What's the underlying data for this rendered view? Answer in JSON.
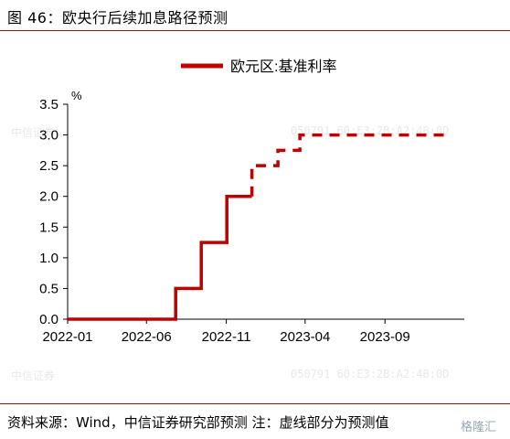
{
  "header": {
    "title": "图 46：欧央行后续加息路径预测"
  },
  "watermarks": {
    "left_text": "中信证券",
    "right_text": "050791  60:E3:2B:A2:4B:0D"
  },
  "footer": {
    "source_text": "资料来源：Wind，中信证券研究部预测  注：虚线部分为预测值",
    "brand_text": "格隆汇"
  },
  "colors": {
    "line": "#c00000",
    "rule": "#c00000"
  },
  "chart_data": {
    "type": "line",
    "title": "",
    "xlabel": "",
    "ylabel": "%",
    "ylim": [
      0,
      3.5
    ],
    "y_ticks": [
      "0.0",
      "0.5",
      "1.0",
      "1.5",
      "2.0",
      "2.5",
      "3.0",
      "3.5"
    ],
    "x_ticks": [
      "2022-01",
      "2022-06",
      "2022-11",
      "2023-04",
      "2023-09"
    ],
    "xlim": [
      "2022-01-01",
      "2024-01-31"
    ],
    "grid": false,
    "legend_position": "top-center",
    "series": [
      {
        "name": "欧元区:基准利率",
        "style": "solid",
        "points": [
          [
            "2022-01-01",
            0.0
          ],
          [
            "2022-07-27",
            0.0
          ],
          [
            "2022-07-27",
            0.5
          ],
          [
            "2022-09-14",
            0.5
          ],
          [
            "2022-09-14",
            1.25
          ],
          [
            "2022-11-02",
            1.25
          ],
          [
            "2022-11-02",
            2.0
          ],
          [
            "2022-12-20",
            2.0
          ]
        ]
      },
      {
        "name": "",
        "style": "dashed",
        "points": [
          [
            "2022-12-20",
            2.0
          ],
          [
            "2022-12-20",
            2.5
          ],
          [
            "2023-02-08",
            2.5
          ],
          [
            "2023-02-08",
            2.75
          ],
          [
            "2023-03-22",
            2.75
          ],
          [
            "2023-03-22",
            3.0
          ],
          [
            "2024-01-01",
            3.0
          ]
        ]
      }
    ]
  }
}
